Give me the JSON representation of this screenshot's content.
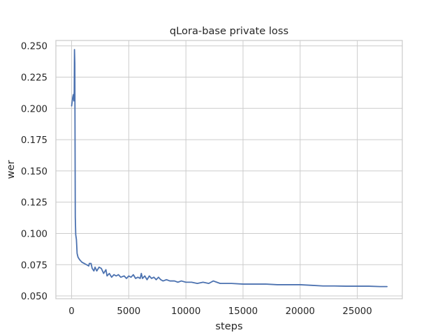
{
  "chart_data": {
    "type": "line",
    "title": "qLora-base private loss",
    "xlabel": "steps",
    "ylabel": "wer",
    "xlim": [
      -1378,
      28938
    ],
    "ylim": [
      0.0478,
      0.2543
    ],
    "x_ticks": [
      0,
      5000,
      10000,
      15000,
      20000,
      25000
    ],
    "x_tick_labels": [
      "0",
      "5000",
      "10000",
      "15000",
      "20000",
      "25000"
    ],
    "y_ticks": [
      0.05,
      0.075,
      0.1,
      0.125,
      0.15,
      0.175,
      0.2,
      0.225,
      0.25
    ],
    "y_tick_labels": [
      "0.050",
      "0.075",
      "0.100",
      "0.125",
      "0.150",
      "0.175",
      "0.200",
      "0.225",
      "0.250"
    ],
    "grid": true,
    "style": "whitegrid",
    "series": [
      {
        "color": "#4c72b0",
        "points": [
          [
            0,
            0.202
          ],
          [
            100,
            0.209
          ],
          [
            150,
            0.211
          ],
          [
            200,
            0.206
          ],
          [
            230,
            0.214
          ],
          [
            250,
            0.247
          ],
          [
            280,
            0.236
          ],
          [
            300,
            0.175
          ],
          [
            320,
            0.113
          ],
          [
            360,
            0.099
          ],
          [
            420,
            0.095
          ],
          [
            480,
            0.084
          ],
          [
            560,
            0.081
          ],
          [
            700,
            0.079
          ],
          [
            900,
            0.077
          ],
          [
            1100,
            0.076
          ],
          [
            1300,
            0.075
          ],
          [
            1500,
            0.074
          ],
          [
            1550,
            0.076
          ],
          [
            1700,
            0.076
          ],
          [
            1800,
            0.072
          ],
          [
            1950,
            0.07
          ],
          [
            2050,
            0.073
          ],
          [
            2200,
            0.07
          ],
          [
            2400,
            0.073
          ],
          [
            2600,
            0.072
          ],
          [
            2800,
            0.068
          ],
          [
            3000,
            0.071
          ],
          [
            3100,
            0.066
          ],
          [
            3300,
            0.068
          ],
          [
            3500,
            0.065
          ],
          [
            3700,
            0.067
          ],
          [
            3900,
            0.066
          ],
          [
            4100,
            0.067
          ],
          [
            4300,
            0.065
          ],
          [
            4600,
            0.066
          ],
          [
            4800,
            0.064
          ],
          [
            5000,
            0.066
          ],
          [
            5200,
            0.065
          ],
          [
            5400,
            0.067
          ],
          [
            5600,
            0.064
          ],
          [
            5800,
            0.065
          ],
          [
            6000,
            0.064
          ],
          [
            6100,
            0.068
          ],
          [
            6200,
            0.064
          ],
          [
            6400,
            0.066
          ],
          [
            6600,
            0.063
          ],
          [
            6800,
            0.066
          ],
          [
            7000,
            0.064
          ],
          [
            7200,
            0.065
          ],
          [
            7400,
            0.063
          ],
          [
            7600,
            0.065
          ],
          [
            7800,
            0.063
          ],
          [
            8000,
            0.062
          ],
          [
            8300,
            0.063
          ],
          [
            8600,
            0.062
          ],
          [
            9000,
            0.062
          ],
          [
            9300,
            0.061
          ],
          [
            9600,
            0.062
          ],
          [
            10000,
            0.061
          ],
          [
            10500,
            0.061
          ],
          [
            11000,
            0.06
          ],
          [
            11500,
            0.061
          ],
          [
            12000,
            0.06
          ],
          [
            12400,
            0.062
          ],
          [
            12700,
            0.061
          ],
          [
            13000,
            0.06
          ],
          [
            14000,
            0.06
          ],
          [
            15000,
            0.0595
          ],
          [
            16000,
            0.0595
          ],
          [
            17000,
            0.0595
          ],
          [
            18000,
            0.059
          ],
          [
            19000,
            0.059
          ],
          [
            20000,
            0.059
          ],
          [
            21000,
            0.0585
          ],
          [
            22000,
            0.058
          ],
          [
            23000,
            0.058
          ],
          [
            24000,
            0.0578
          ],
          [
            25000,
            0.0578
          ],
          [
            26000,
            0.0578
          ],
          [
            27000,
            0.0575
          ],
          [
            27600,
            0.0575
          ]
        ]
      }
    ]
  }
}
